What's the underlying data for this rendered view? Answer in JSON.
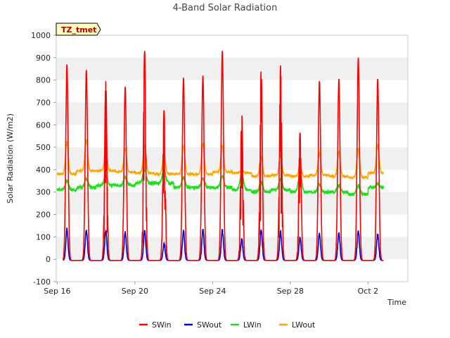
{
  "chart_data": {
    "type": "line",
    "title": "4-Band Solar Radiation",
    "xlabel": "Time",
    "ylabel": "Solar Radiation (W/m2)",
    "ylim": [
      -100,
      1000
    ],
    "yticks": [
      -100,
      0,
      100,
      200,
      300,
      400,
      500,
      600,
      700,
      800,
      900,
      1000
    ],
    "xlim_days": [
      -0.05,
      18.05
    ],
    "xticks": [
      {
        "label": "Sep 16",
        "day": 0
      },
      {
        "label": "Sep 20",
        "day": 4
      },
      {
        "label": "Sep 24",
        "day": 8
      },
      {
        "label": "Sep 28",
        "day": 12
      },
      {
        "label": "Oct 2",
        "day": 16
      }
    ],
    "grid": "horizontal alternating bands",
    "annotation": "TZ_tmet",
    "legend_position": "bottom-center",
    "series": [
      {
        "name": "SWin",
        "color": "#ff0000",
        "daily_peak": [
          875,
          850,
          800,
          775,
          935,
          670,
          815,
          825,
          935,
          655,
          855,
          870,
          570,
          800,
          810,
          905,
          810
        ],
        "noisy_days": [
          2,
          4,
          5,
          9,
          10,
          11,
          12
        ]
      },
      {
        "name": "SWout",
        "color": "#0000cc",
        "daily_peak": [
          140,
          135,
          130,
          125,
          130,
          75,
          130,
          135,
          135,
          95,
          135,
          125,
          100,
          120,
          120,
          130,
          120
        ]
      },
      {
        "name": "LWin",
        "color": "#22dd22",
        "daily_base": [
          310,
          320,
          330,
          330,
          340,
          340,
          320,
          320,
          320,
          310,
          300,
          310,
          300,
          300,
          300,
          290,
          320
        ],
        "daily_peak": [
          350,
          360,
          375,
          365,
          400,
          400,
          365,
          360,
          370,
          385,
          345,
          360,
          390,
          335,
          330,
          330,
          335
        ]
      },
      {
        "name": "LWout",
        "color": "#ffa500",
        "daily_base": [
          380,
          395,
          395,
          390,
          385,
          380,
          380,
          380,
          390,
          385,
          370,
          375,
          370,
          375,
          370,
          365,
          385
        ],
        "daily_peak": [
          525,
          530,
          490,
          495,
          510,
          470,
          505,
          515,
          505,
          400,
          460,
          460,
          420,
          475,
          480,
          495,
          510
        ]
      }
    ]
  }
}
